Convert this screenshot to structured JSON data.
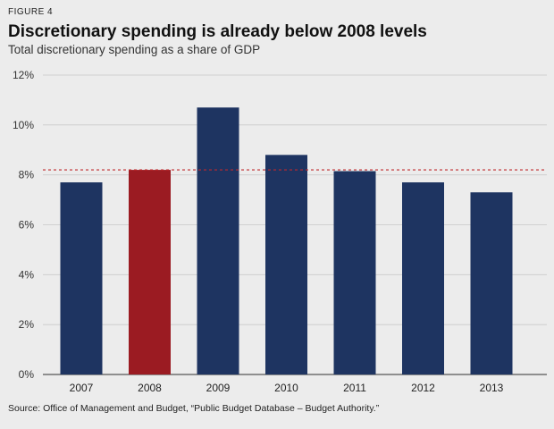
{
  "figure_label": "FIGURE 4",
  "source": "Source: Office of Management and Budget, “Public Budget Database – Budget Authority.”",
  "colors": {
    "bar": "#1e3461",
    "highlight": "#9b1b22",
    "reference": "#c0282d",
    "grid": "#c9c9c9",
    "axis": "#555555"
  },
  "chart_data": {
    "type": "bar",
    "title": "Discretionary spending is already below 2008 levels",
    "subtitle": "Total discretionary spending as a share of GDP",
    "xlabel": "",
    "ylabel": "",
    "categories": [
      "2007",
      "2008",
      "2009",
      "2010",
      "2011",
      "2012",
      "2013"
    ],
    "values": [
      7.7,
      8.2,
      10.7,
      8.8,
      8.15,
      7.7,
      7.3
    ],
    "highlight_category": "2008",
    "reference_line": 8.2,
    "ylim": [
      0,
      12
    ],
    "yticks": [
      0,
      2,
      4,
      6,
      8,
      10,
      12
    ],
    "ytick_labels": [
      "0%",
      "2%",
      "4%",
      "6%",
      "8%",
      "10%",
      "12%"
    ],
    "grid": true
  }
}
